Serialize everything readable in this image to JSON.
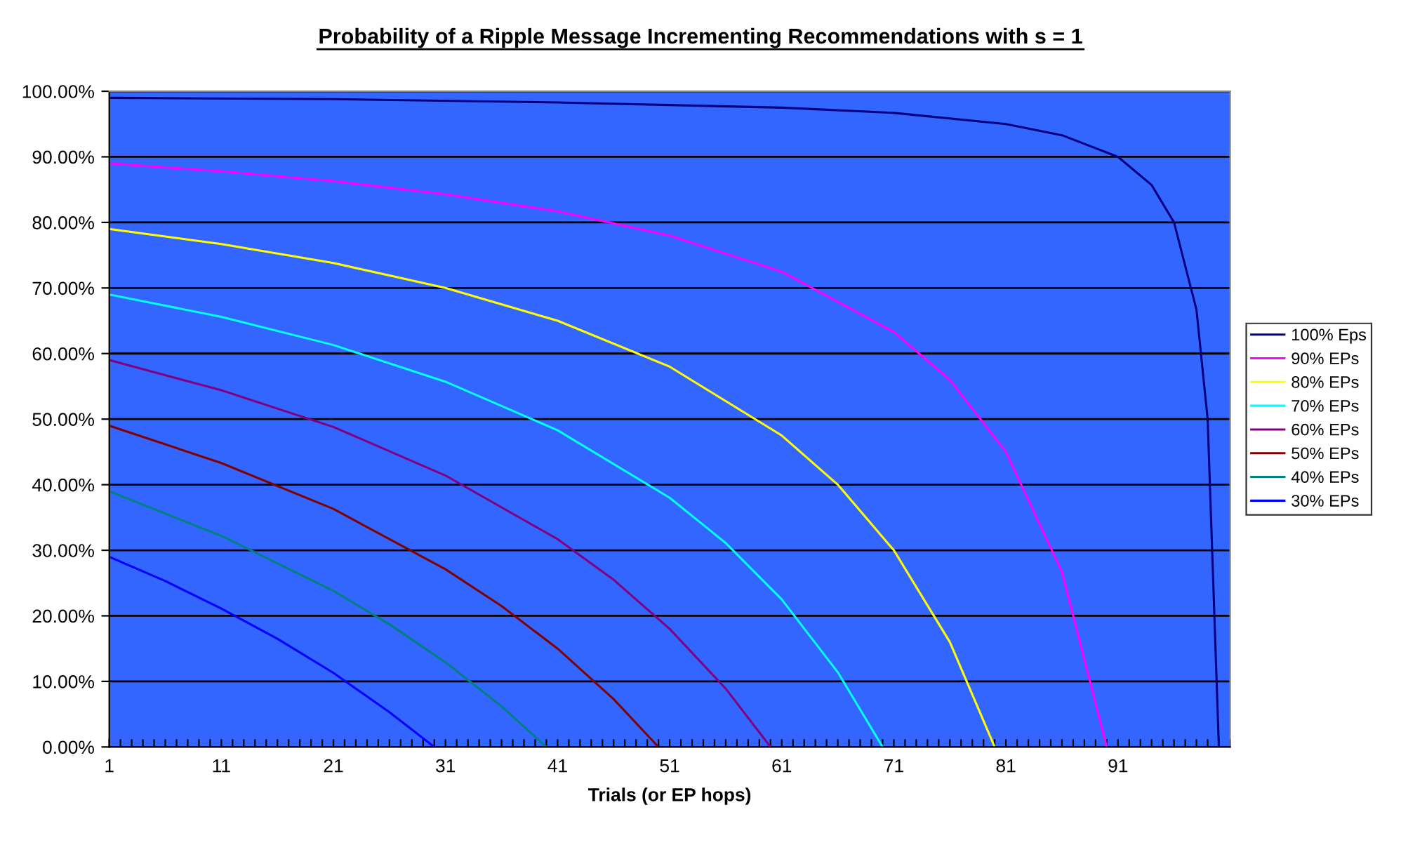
{
  "chart_data": {
    "type": "line",
    "title": "Probability of a Ripple Message Incrementing Recommendations with s = 1",
    "xlabel": "Trials (or EP hops)",
    "xlim": [
      1,
      101
    ],
    "ylim": [
      0,
      100
    ],
    "xticks": [
      1,
      {
        "value": 2,
        "label": null
      },
      {
        "value": 3,
        "label": null
      },
      {
        "value": 4,
        "label": null
      },
      {
        "value": 5,
        "label": null
      },
      {
        "value": 6,
        "label": null
      },
      {
        "value": 7,
        "label": null
      },
      {
        "value": 8,
        "label": null
      },
      {
        "value": 9,
        "label": null
      },
      {
        "value": 10,
        "label": null
      },
      11,
      {
        "value": 12,
        "label": null
      },
      {
        "value": 13,
        "label": null
      },
      {
        "value": 14,
        "label": null
      },
      {
        "value": 15,
        "label": null
      },
      {
        "value": 16,
        "label": null
      },
      {
        "value": 17,
        "label": null
      },
      {
        "value": 18,
        "label": null
      },
      {
        "value": 19,
        "label": null
      },
      {
        "value": 20,
        "label": null
      },
      21,
      {
        "value": 22,
        "label": null
      },
      {
        "value": 23,
        "label": null
      },
      {
        "value": 24,
        "label": null
      },
      {
        "value": 25,
        "label": null
      },
      {
        "value": 26,
        "label": null
      },
      {
        "value": 27,
        "label": null
      },
      {
        "value": 28,
        "label": null
      },
      {
        "value": 29,
        "label": null
      },
      {
        "value": 30,
        "label": null
      },
      31,
      {
        "value": 32,
        "label": null
      },
      {
        "value": 33,
        "label": null
      },
      {
        "value": 34,
        "label": null
      },
      {
        "value": 35,
        "label": null
      },
      {
        "value": 36,
        "label": null
      },
      {
        "value": 37,
        "label": null
      },
      {
        "value": 38,
        "label": null
      },
      {
        "value": 39,
        "label": null
      },
      {
        "value": 40,
        "label": null
      },
      41,
      {
        "value": 42,
        "label": null
      },
      {
        "value": 43,
        "label": null
      },
      {
        "value": 44,
        "label": null
      },
      {
        "value": 45,
        "label": null
      },
      {
        "value": 46,
        "label": null
      },
      {
        "value": 47,
        "label": null
      },
      {
        "value": 48,
        "label": null
      },
      {
        "value": 49,
        "label": null
      },
      {
        "value": 50,
        "label": null
      },
      51,
      {
        "value": 52,
        "label": null
      },
      {
        "value": 53,
        "label": null
      },
      {
        "value": 54,
        "label": null
      },
      {
        "value": 55,
        "label": null
      },
      {
        "value": 56,
        "label": null
      },
      {
        "value": 57,
        "label": null
      },
      {
        "value": 58,
        "label": null
      },
      {
        "value": 59,
        "label": null
      },
      {
        "value": 60,
        "label": null
      },
      61,
      {
        "value": 62,
        "label": null
      },
      {
        "value": 63,
        "label": null
      },
      {
        "value": 64,
        "label": null
      },
      {
        "value": 65,
        "label": null
      },
      {
        "value": 66,
        "label": null
      },
      {
        "value": 67,
        "label": null
      },
      {
        "value": 68,
        "label": null
      },
      {
        "value": 69,
        "label": null
      },
      {
        "value": 70,
        "label": null
      },
      71,
      {
        "value": 72,
        "label": null
      },
      {
        "value": 73,
        "label": null
      },
      {
        "value": 74,
        "label": null
      },
      {
        "value": 75,
        "label": null
      },
      {
        "value": 76,
        "label": null
      },
      {
        "value": 77,
        "label": null
      },
      {
        "value": 78,
        "label": null
      },
      {
        "value": 79,
        "label": null
      },
      {
        "value": 80,
        "label": null
      },
      81,
      {
        "value": 82,
        "label": null
      },
      {
        "value": 83,
        "label": null
      },
      {
        "value": 84,
        "label": null
      },
      {
        "value": 85,
        "label": null
      },
      {
        "value": 86,
        "label": null
      },
      {
        "value": 87,
        "label": null
      },
      {
        "value": 88,
        "label": null
      },
      {
        "value": 89,
        "label": null
      },
      {
        "value": 90,
        "label": null
      },
      91,
      {
        "value": 92,
        "label": null
      },
      {
        "value": 93,
        "label": null
      },
      {
        "value": 94,
        "label": null
      },
      {
        "value": 95,
        "label": null
      },
      {
        "value": 96,
        "label": null
      },
      {
        "value": 97,
        "label": null
      },
      {
        "value": 98,
        "label": null
      },
      {
        "value": 99,
        "label": null
      },
      {
        "value": 100,
        "label": null
      },
      {
        "value": 101,
        "label": null
      }
    ],
    "yticks": [
      {
        "value": 0,
        "label": "0.00%"
      },
      {
        "value": 10,
        "label": "10.00%"
      },
      {
        "value": 20,
        "label": "20.00%"
      },
      {
        "value": 30,
        "label": "30.00%"
      },
      {
        "value": 40,
        "label": "40.00%"
      },
      {
        "value": 50,
        "label": "50.00%"
      },
      {
        "value": 60,
        "label": "60.00%"
      },
      {
        "value": 70,
        "label": "70.00%"
      },
      {
        "value": 80,
        "label": "80.00%"
      },
      {
        "value": 90,
        "label": "90.00%"
      },
      {
        "value": 100,
        "label": "100.00%"
      }
    ],
    "grid": "y",
    "legend": "right",
    "marker": "none",
    "line_style": "solid",
    "series": [
      {
        "name": "100% Eps",
        "color": "#000080",
        "x": [
          1,
          21,
          41,
          61,
          71,
          81,
          86,
          91,
          94,
          96,
          98,
          99,
          100
        ],
        "values": [
          99,
          98.8,
          98.3,
          97.5,
          96.7,
          95,
          93.3,
          90,
          85.7,
          80,
          66.7,
          50,
          0
        ]
      },
      {
        "name": "90% EPs",
        "color": "#ff00ff",
        "x": [
          1,
          11,
          21,
          31,
          41,
          51,
          61,
          71,
          76,
          81,
          86,
          90
        ],
        "values": [
          89,
          87.8,
          86.3,
          84.3,
          81.7,
          78,
          72.5,
          63.3,
          56,
          45,
          26.7,
          0
        ]
      },
      {
        "name": "80% EPs",
        "color": "#ffff00",
        "x": [
          1,
          11,
          21,
          31,
          41,
          51,
          61,
          66,
          71,
          76,
          80
        ],
        "values": [
          79,
          76.7,
          73.8,
          70,
          65,
          58,
          47.5,
          40,
          30,
          16,
          0
        ]
      },
      {
        "name": "70% EPs",
        "color": "#00ffff",
        "x": [
          1,
          11,
          21,
          31,
          41,
          51,
          56,
          61,
          66,
          70
        ],
        "values": [
          69,
          65.6,
          61.3,
          55.7,
          48.3,
          38,
          31.1,
          22.5,
          11.4,
          0
        ]
      },
      {
        "name": "60% EPs",
        "color": "#800080",
        "x": [
          1,
          11,
          21,
          31,
          41,
          46,
          51,
          56,
          60
        ],
        "values": [
          59,
          54.4,
          48.8,
          41.4,
          31.7,
          25.5,
          18,
          8.9,
          0
        ]
      },
      {
        "name": "50% EPs",
        "color": "#800000",
        "x": [
          1,
          11,
          21,
          31,
          36,
          41,
          46,
          50
        ],
        "values": [
          49,
          43.3,
          36.3,
          27.1,
          21.5,
          15,
          7.3,
          0
        ]
      },
      {
        "name": "40% EPs",
        "color": "#008080",
        "x": [
          1,
          11,
          21,
          26,
          31,
          36,
          40
        ],
        "values": [
          39,
          32.2,
          23.8,
          18.7,
          12.9,
          6.2,
          0
        ]
      },
      {
        "name": "30% EPs",
        "color": "#0000ff",
        "x": [
          1,
          6,
          11,
          16,
          21,
          26,
          30
        ],
        "values": [
          29,
          25.3,
          21.1,
          16.5,
          11.3,
          5.3,
          0
        ]
      }
    ]
  }
}
